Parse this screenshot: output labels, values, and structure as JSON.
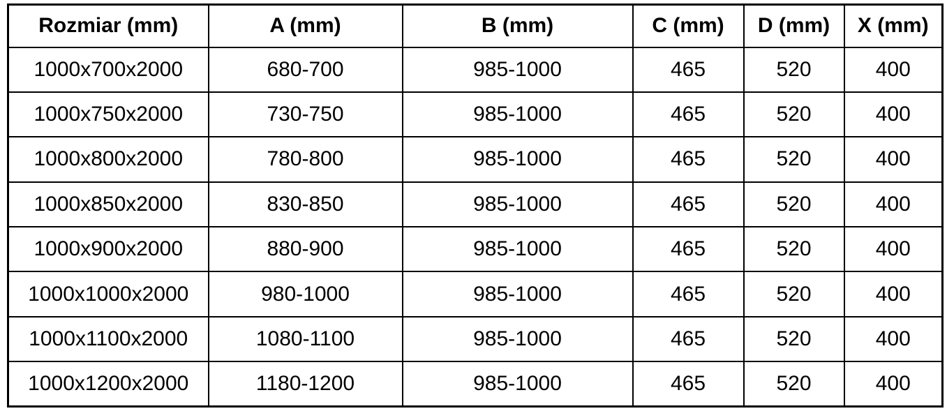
{
  "table": {
    "headers": [
      "Rozmiar (mm)",
      "A (mm)",
      "B (mm)",
      "C (mm)",
      "D (mm)",
      "X (mm)"
    ],
    "rows": [
      [
        "1000x700x2000",
        "680-700",
        "985-1000",
        "465",
        "520",
        "400"
      ],
      [
        "1000x750x2000",
        "730-750",
        "985-1000",
        "465",
        "520",
        "400"
      ],
      [
        "1000x800x2000",
        "780-800",
        "985-1000",
        "465",
        "520",
        "400"
      ],
      [
        "1000x850x2000",
        "830-850",
        "985-1000",
        "465",
        "520",
        "400"
      ],
      [
        "1000x900x2000",
        "880-900",
        "985-1000",
        "465",
        "520",
        "400"
      ],
      [
        "1000x1000x2000",
        "980-1000",
        "985-1000",
        "465",
        "520",
        "400"
      ],
      [
        "1000x1100x2000",
        "1080-1100",
        "985-1000",
        "465",
        "520",
        "400"
      ],
      [
        "1000x1200x2000",
        "1180-1200",
        "985-1000",
        "465",
        "520",
        "400"
      ]
    ]
  },
  "colors": {
    "border": "#000000",
    "background": "#ffffff",
    "text": "#000000"
  }
}
